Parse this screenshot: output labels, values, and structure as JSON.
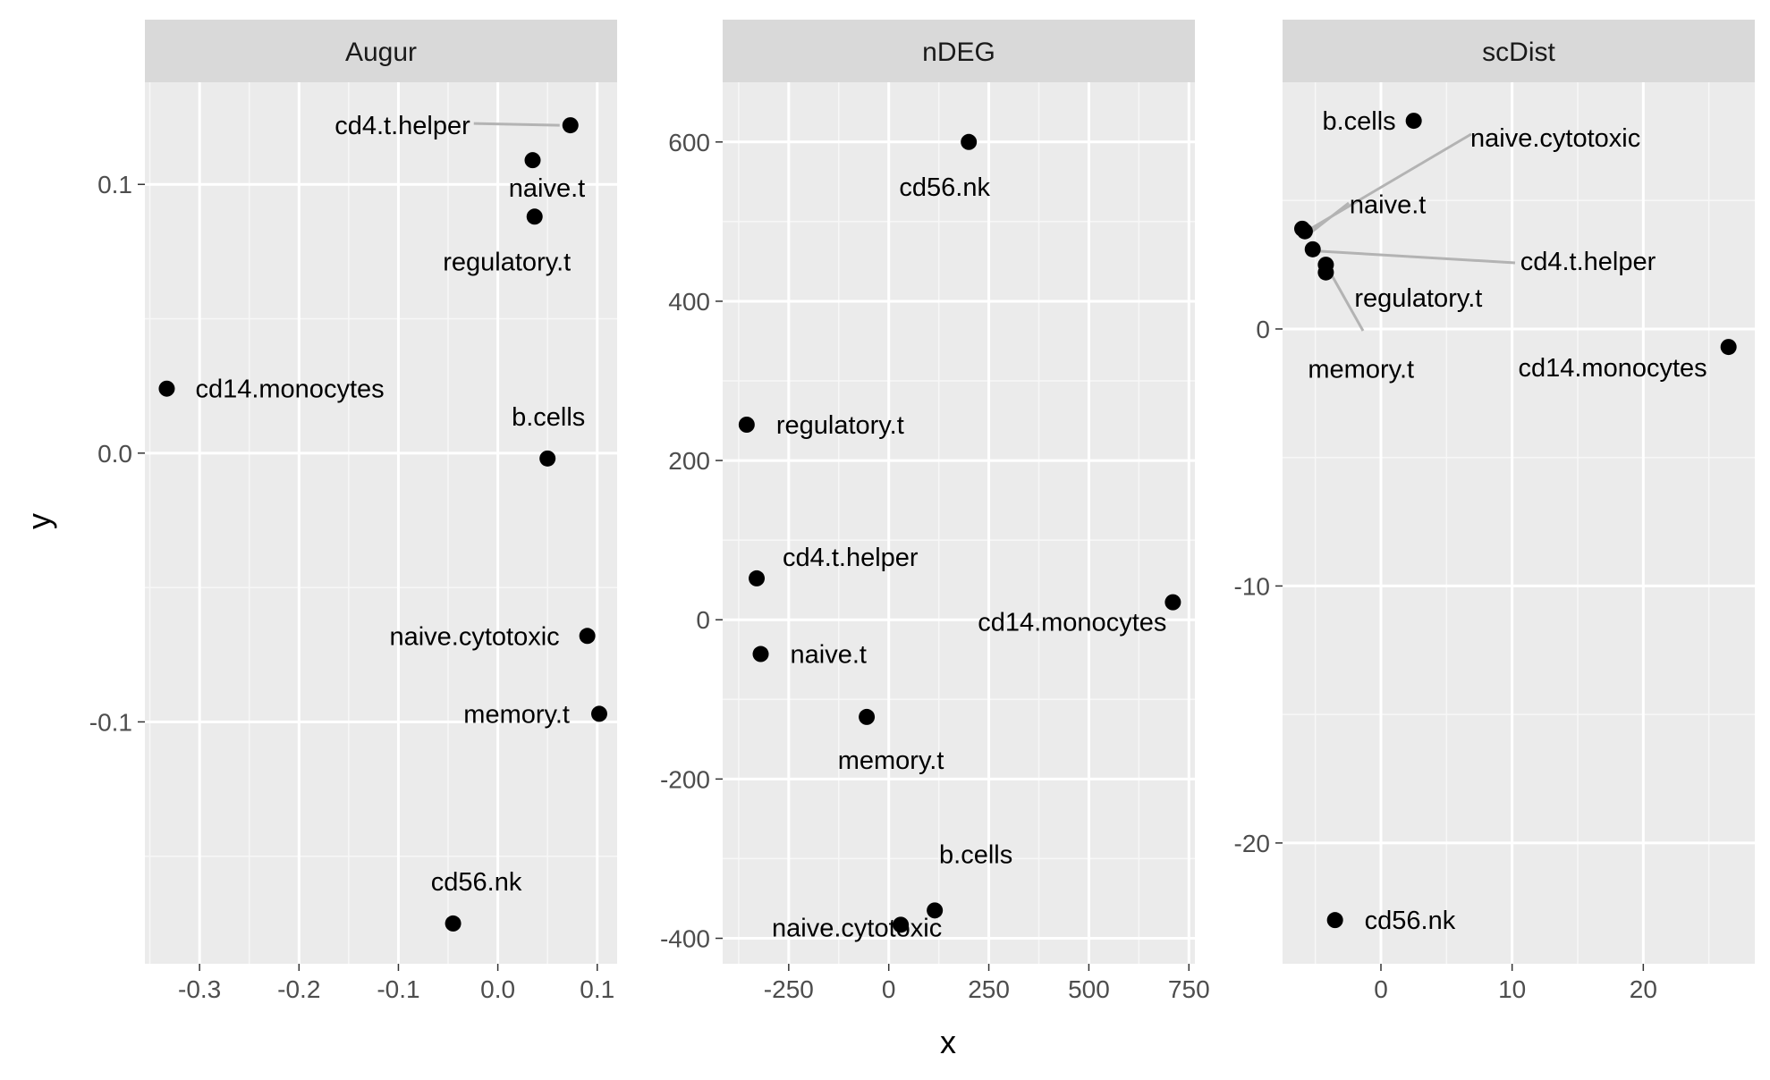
{
  "chart_data": {
    "type": "scatter",
    "xlabel": "x",
    "ylabel": "y",
    "grid": true,
    "facets": [
      {
        "title": "Augur",
        "xlim": [
          -0.355,
          0.12
        ],
        "ylim": [
          -0.19,
          0.138
        ],
        "x_ticks": [
          -0.3,
          -0.2,
          -0.1,
          0.0,
          0.1
        ],
        "x_tick_labels": [
          "-0.3",
          "-0.2",
          "-0.1",
          "0.0",
          "0.1"
        ],
        "y_ticks": [
          0.1,
          0.0,
          -0.1
        ],
        "y_tick_labels": [
          "0.1",
          "0.0",
          "-0.1"
        ],
        "points": [
          {
            "label": "cd4.t.helper",
            "x": 0.073,
            "y": 0.122
          },
          {
            "label": "naive.t",
            "x": 0.035,
            "y": 0.109
          },
          {
            "label": "regulatory.t",
            "x": 0.037,
            "y": 0.088
          },
          {
            "label": "cd14.monocytes",
            "x": -0.333,
            "y": 0.024
          },
          {
            "label": "b.cells",
            "x": 0.05,
            "y": -0.002
          },
          {
            "label": "naive.cytotoxic",
            "x": 0.09,
            "y": -0.068
          },
          {
            "label": "memory.t",
            "x": 0.102,
            "y": -0.097
          },
          {
            "label": "cd56.nk",
            "x": -0.045,
            "y": -0.175
          }
        ]
      },
      {
        "title": "nDEG",
        "xlim": [
          -415,
          765
        ],
        "ylim": [
          -432,
          675
        ],
        "x_ticks": [
          -250,
          0,
          250,
          500,
          750
        ],
        "x_tick_labels": [
          "-250",
          "0",
          "250",
          "500",
          "750"
        ],
        "y_ticks": [
          600,
          400,
          200,
          0,
          -200,
          -400
        ],
        "y_tick_labels": [
          "600",
          "400",
          "200",
          "0",
          "-200",
          "-400"
        ],
        "points": [
          {
            "label": "cd56.nk",
            "x": 200,
            "y": 600
          },
          {
            "label": "regulatory.t",
            "x": -355,
            "y": 245
          },
          {
            "label": "cd4.t.helper",
            "x": -330,
            "y": 52
          },
          {
            "label": "naive.t",
            "x": -320,
            "y": -43
          },
          {
            "label": "cd14.monocytes",
            "x": 710,
            "y": 22
          },
          {
            "label": "memory.t",
            "x": -55,
            "y": -122
          },
          {
            "label": "b.cells",
            "x": 115,
            "y": -365
          },
          {
            "label": "naive.cytotoxic",
            "x": 30,
            "y": -383
          }
        ]
      },
      {
        "title": "scDist",
        "xlim": [
          -7.5,
          28.5
        ],
        "ylim": [
          -24.7,
          9.6
        ],
        "x_ticks": [
          0,
          10,
          20
        ],
        "x_tick_labels": [
          "0",
          "10",
          "20"
        ],
        "y_ticks": [
          0,
          -10,
          -20
        ],
        "y_tick_labels": [
          "0",
          "-10",
          "-20"
        ],
        "points": [
          {
            "label": "b.cells",
            "x": 2.5,
            "y": 8.1
          },
          {
            "label": "naive.cytotoxic",
            "x": -6.0,
            "y": 3.9
          },
          {
            "label": "naive.t",
            "x": -5.8,
            "y": 3.8
          },
          {
            "label": "cd4.t.helper",
            "x": -5.2,
            "y": 3.1
          },
          {
            "label": "regulatory.t",
            "x": -4.2,
            "y": 2.5
          },
          {
            "label": "memory.t",
            "x": -4.2,
            "y": 2.2
          },
          {
            "label": "cd14.monocytes",
            "x": 26.5,
            "y": -0.7
          },
          {
            "label": "cd56.nk",
            "x": -3.5,
            "y": -23.0
          }
        ]
      }
    ]
  }
}
